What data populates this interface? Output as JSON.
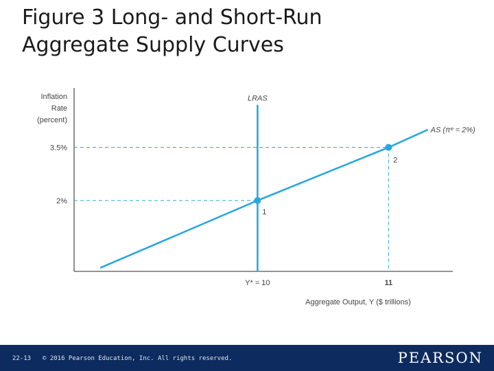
{
  "slide": {
    "title_line1": "Figure 3 Long- and Short-Run",
    "title_line2": "Aggregate Supply Curves"
  },
  "footer": {
    "page": "22-13",
    "copyright": "© 2016 Pearson Education, Inc. All rights reserved.",
    "logo": "PEARSON",
    "bar_color": "#0d2b5e"
  },
  "chart_data": {
    "type": "line",
    "title": "Figure 3 Long- and Short-Run Aggregate Supply Curves",
    "xlabel": "Aggregate Output, Y ($ trillions)",
    "ylabel_lines": [
      "Inflation",
      "Rate",
      "(percent)"
    ],
    "x_ticks": [
      {
        "value": 10,
        "label": "Y* = 10"
      },
      {
        "value": 11,
        "label": "11"
      }
    ],
    "y_ticks": [
      {
        "value": 2,
        "label": "2%"
      },
      {
        "value": 3.5,
        "label": "3.5%"
      }
    ],
    "xlim": [
      8.6,
      11.7
    ],
    "ylim": [
      0,
      5.1
    ],
    "grid": false,
    "series": [
      {
        "name": "AS (πᵉ = 2%)",
        "kind": "line",
        "points": [
          [
            8.8,
            0.1
          ],
          [
            10,
            2
          ],
          [
            11,
            3.5
          ],
          [
            11.3,
            4.0
          ]
        ]
      },
      {
        "name": "LRAS",
        "kind": "vertical",
        "x": 10,
        "y_range": [
          0,
          4.7
        ]
      }
    ],
    "points": [
      {
        "x": 10,
        "y": 2,
        "label": "1"
      },
      {
        "x": 11,
        "y": 3.5,
        "label": "2"
      }
    ],
    "colors": {
      "line": "#2aa7de",
      "axis": "#555555",
      "dash": "#2aa7de"
    }
  }
}
